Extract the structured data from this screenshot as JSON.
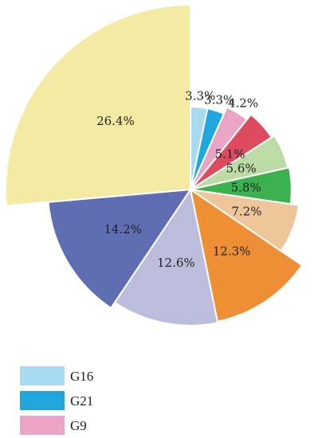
{
  "chart_data": {
    "type": "pie",
    "variant": "polar-area",
    "start": "12 o'clock",
    "direction": "clockwise",
    "legend_position": "bottom-left",
    "slices": [
      {
        "name": "G16",
        "value": 3.3,
        "label": "3.3%",
        "color": "#a8dbf0"
      },
      {
        "name": "G21",
        "value": 3.3,
        "label": "3.3%",
        "color": "#1fa6dd"
      },
      {
        "name": "G9",
        "value": 4.2,
        "label": "4.2%",
        "color": "#eaa4c6"
      },
      {
        "name": "",
        "value": 5.1,
        "label": "5.1%",
        "color": "#dd4b5f"
      },
      {
        "name": "",
        "value": 5.6,
        "label": "5.6%",
        "color": "#bcdba5"
      },
      {
        "name": "",
        "value": 5.8,
        "label": "5.8%",
        "color": "#3bb24f"
      },
      {
        "name": "",
        "value": 7.2,
        "label": "7.2%",
        "color": "#efc59a"
      },
      {
        "name": "",
        "value": 12.3,
        "label": "12.3%",
        "color": "#ef8f35"
      },
      {
        "name": "",
        "value": 12.6,
        "label": "12.6%",
        "color": "#bcbcdc"
      },
      {
        "name": "",
        "value": 14.2,
        "label": "14.2%",
        "color": "#5f6db3"
      },
      {
        "name": "",
        "value": 26.4,
        "label": "26.4%",
        "color": "#f3eaa4"
      }
    ],
    "legend": [
      {
        "name": "G16",
        "color": "#a8dbf0"
      },
      {
        "name": "G21",
        "color": "#1fa6dd"
      },
      {
        "name": "G9",
        "color": "#eaa4c6"
      }
    ]
  }
}
